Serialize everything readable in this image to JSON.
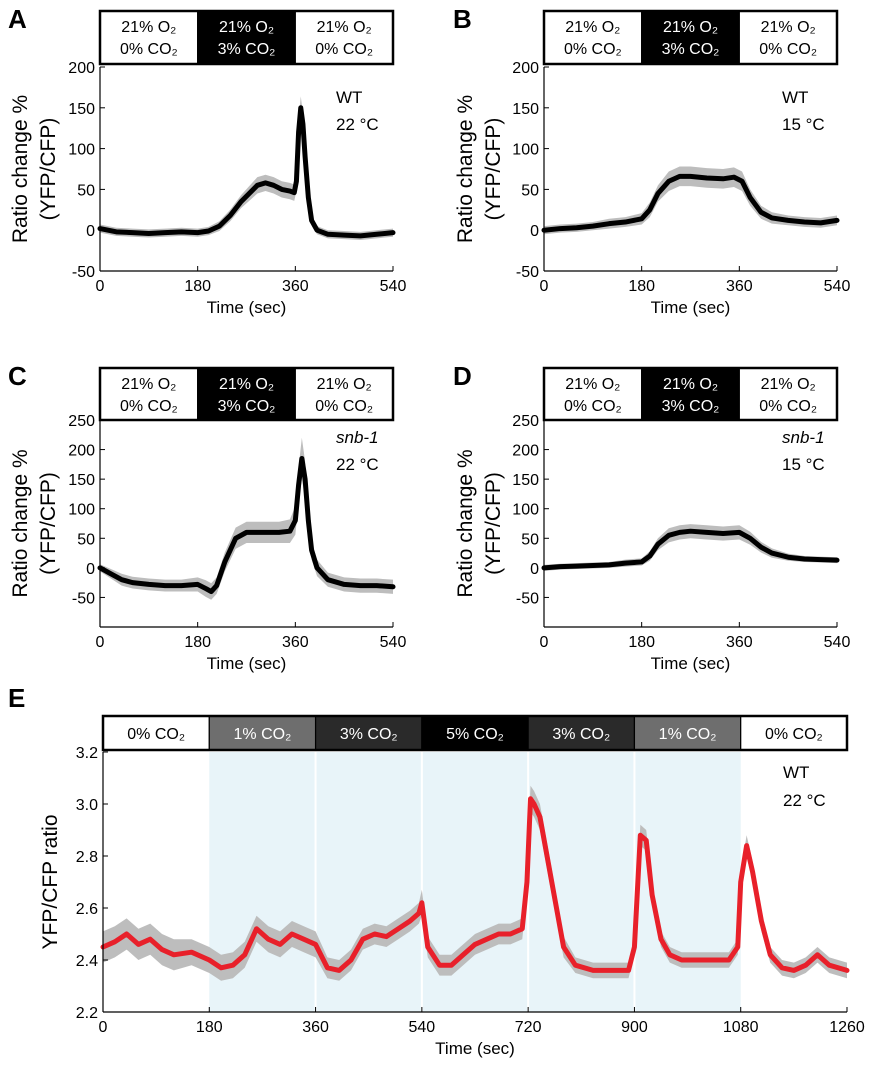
{
  "chart_data": [
    {
      "panel": "A",
      "type": "line",
      "xlabel": "Time (sec)",
      "ylabel_lines": [
        "Ratio change %",
        "(YFP/CFP)"
      ],
      "xlim": [
        0,
        540
      ],
      "ylim": [
        -50,
        200
      ],
      "xticks": [
        0,
        180,
        360,
        540
      ],
      "yticks": [
        -50,
        0,
        50,
        100,
        150,
        200
      ],
      "annotation_lines": [
        "WT",
        "22 °C"
      ],
      "annotation_italic": false,
      "stimulus": [
        {
          "line1": "21% O₂",
          "line2": "0% CO₂",
          "start": 0,
          "end": 180,
          "fill": "#ffffff",
          "text_color": "#000000"
        },
        {
          "line1": "21% O₂",
          "line2": "3% CO₂",
          "start": 180,
          "end": 360,
          "fill": "#000000",
          "text_color": "#ffffff"
        },
        {
          "line1": "21% O₂",
          "line2": "0% CO₂",
          "start": 360,
          "end": 540,
          "fill": "#ffffff",
          "text_color": "#000000"
        }
      ],
      "series": [
        {
          "color": "#000000",
          "band_color": "#bdbdbd",
          "x": [
            0,
            30,
            60,
            90,
            120,
            150,
            180,
            200,
            220,
            240,
            260,
            275,
            290,
            305,
            320,
            335,
            350,
            358,
            362,
            366,
            370,
            374,
            378,
            384,
            390,
            400,
            420,
            450,
            480,
            510,
            540
          ],
          "y": [
            2,
            -2,
            -3,
            -4,
            -3,
            -2,
            -3,
            -1,
            5,
            18,
            35,
            45,
            55,
            58,
            55,
            50,
            48,
            46,
            60,
            120,
            150,
            130,
            90,
            40,
            12,
            0,
            -5,
            -6,
            -7,
            -5,
            -3
          ],
          "err": [
            5,
            5,
            5,
            5,
            5,
            5,
            5,
            5,
            6,
            7,
            8,
            9,
            10,
            10,
            10,
            10,
            10,
            10,
            12,
            14,
            14,
            14,
            12,
            8,
            6,
            5,
            5,
            5,
            5,
            5,
            5
          ]
        }
      ]
    },
    {
      "panel": "B",
      "type": "line",
      "xlabel": "Time (sec)",
      "ylabel_lines": [
        "Ratio change %",
        "(YFP/CFP)"
      ],
      "xlim": [
        0,
        540
      ],
      "ylim": [
        -50,
        200
      ],
      "xticks": [
        0,
        180,
        360,
        540
      ],
      "yticks": [
        -50,
        0,
        50,
        100,
        150,
        200
      ],
      "annotation_lines": [
        "WT",
        "15 °C"
      ],
      "annotation_italic": false,
      "stimulus": [
        {
          "line1": "21% O₂",
          "line2": "0% CO₂",
          "start": 0,
          "end": 180,
          "fill": "#ffffff",
          "text_color": "#000000"
        },
        {
          "line1": "21% O₂",
          "line2": "3% CO₂",
          "start": 180,
          "end": 360,
          "fill": "#000000",
          "text_color": "#ffffff"
        },
        {
          "line1": "21% O₂",
          "line2": "0% CO₂",
          "start": 360,
          "end": 540,
          "fill": "#ffffff",
          "text_color": "#000000"
        }
      ],
      "series": [
        {
          "color": "#000000",
          "band_color": "#bdbdbd",
          "x": [
            0,
            30,
            60,
            90,
            120,
            150,
            180,
            195,
            210,
            230,
            250,
            270,
            300,
            330,
            350,
            365,
            380,
            400,
            420,
            450,
            480,
            510,
            540
          ],
          "y": [
            0,
            2,
            3,
            5,
            8,
            10,
            14,
            25,
            45,
            60,
            66,
            66,
            64,
            63,
            65,
            60,
            40,
            22,
            15,
            12,
            10,
            9,
            12
          ],
          "err": [
            5,
            5,
            5,
            5,
            6,
            6,
            7,
            9,
            10,
            12,
            12,
            12,
            12,
            12,
            12,
            12,
            10,
            8,
            7,
            6,
            6,
            6,
            6
          ]
        }
      ]
    },
    {
      "panel": "C",
      "type": "line",
      "xlabel": "Time (sec)",
      "ylabel_lines": [
        "Ratio change %",
        "(YFP/CFP)"
      ],
      "xlim": [
        0,
        540
      ],
      "ylim": [
        -100,
        250
      ],
      "xticks": [
        0,
        180,
        360,
        540
      ],
      "yticks": [
        -50,
        0,
        50,
        100,
        150,
        200,
        250
      ],
      "annotation_lines": [
        "snb-1",
        "22 °C"
      ],
      "annotation_italic": true,
      "stimulus": [
        {
          "line1": "21% O₂",
          "line2": "0% CO₂",
          "start": 0,
          "end": 180,
          "fill": "#ffffff",
          "text_color": "#000000"
        },
        {
          "line1": "21% O₂",
          "line2": "3% CO₂",
          "start": 180,
          "end": 360,
          "fill": "#000000",
          "text_color": "#ffffff"
        },
        {
          "line1": "21% O₂",
          "line2": "0% CO₂",
          "start": 360,
          "end": 540,
          "fill": "#ffffff",
          "text_color": "#000000"
        }
      ],
      "series": [
        {
          "color": "#000000",
          "band_color": "#bdbdbd",
          "x": [
            0,
            20,
            40,
            60,
            90,
            120,
            150,
            180,
            195,
            205,
            215,
            230,
            250,
            270,
            300,
            330,
            350,
            360,
            366,
            372,
            378,
            384,
            390,
            400,
            420,
            450,
            480,
            510,
            540
          ],
          "y": [
            0,
            -10,
            -20,
            -25,
            -28,
            -30,
            -30,
            -28,
            -35,
            -40,
            -30,
            10,
            50,
            60,
            60,
            60,
            62,
            80,
            140,
            185,
            150,
            80,
            30,
            0,
            -20,
            -28,
            -30,
            -30,
            -32
          ],
          "err": [
            6,
            8,
            10,
            10,
            10,
            10,
            10,
            12,
            14,
            14,
            14,
            16,
            18,
            18,
            18,
            18,
            20,
            24,
            30,
            35,
            30,
            22,
            16,
            14,
            12,
            12,
            12,
            12,
            12
          ]
        }
      ]
    },
    {
      "panel": "D",
      "type": "line",
      "xlabel": "Time (sec)",
      "ylabel_lines": [
        "Ratio change %",
        "(YFP/CFP)"
      ],
      "xlim": [
        0,
        540
      ],
      "ylim": [
        -100,
        250
      ],
      "xticks": [
        0,
        180,
        360,
        540
      ],
      "yticks": [
        -50,
        0,
        50,
        100,
        150,
        200,
        250
      ],
      "annotation_lines": [
        "snb-1",
        "15 °C"
      ],
      "annotation_italic": true,
      "stimulus": [
        {
          "line1": "21% O₂",
          "line2": "0% CO₂",
          "start": 0,
          "end": 180,
          "fill": "#ffffff",
          "text_color": "#000000"
        },
        {
          "line1": "21% O₂",
          "line2": "3% CO₂",
          "start": 180,
          "end": 360,
          "fill": "#000000",
          "text_color": "#ffffff"
        },
        {
          "line1": "21% O₂",
          "line2": "0% CO₂",
          "start": 360,
          "end": 540,
          "fill": "#ffffff",
          "text_color": "#000000"
        }
      ],
      "series": [
        {
          "color": "#000000",
          "band_color": "#bdbdbd",
          "x": [
            0,
            30,
            60,
            90,
            120,
            150,
            180,
            195,
            210,
            230,
            250,
            270,
            300,
            330,
            360,
            380,
            400,
            420,
            450,
            480,
            510,
            540
          ],
          "y": [
            0,
            2,
            3,
            4,
            5,
            8,
            10,
            20,
            40,
            55,
            60,
            62,
            60,
            58,
            60,
            50,
            35,
            25,
            18,
            15,
            14,
            13
          ],
          "err": [
            5,
            5,
            5,
            5,
            5,
            6,
            6,
            8,
            10,
            12,
            12,
            12,
            12,
            12,
            12,
            11,
            9,
            8,
            6,
            5,
            5,
            5
          ]
        }
      ]
    },
    {
      "panel": "E",
      "type": "line",
      "xlabel": "Time (sec)",
      "ylabel_lines": [
        "YFP/CFP ratio"
      ],
      "xlim": [
        0,
        1260
      ],
      "ylim": [
        2.2,
        3.2
      ],
      "xticks": [
        0,
        180,
        360,
        540,
        720,
        900,
        1080,
        1260
      ],
      "yticks": [
        2.2,
        2.4,
        2.6,
        2.8,
        3.0,
        3.2
      ],
      "ytick_labels": [
        "2.2",
        "2.4",
        "2.6",
        "2.8",
        "3.0",
        "3.2"
      ],
      "annotation_lines": [
        "WT",
        "22 °C"
      ],
      "annotation_italic": false,
      "shaded_region": {
        "start": 180,
        "end": 1080,
        "color": "#e8f4f9"
      },
      "stimulus": [
        {
          "line1": "0% CO₂",
          "start": 0,
          "end": 180,
          "fill": "#ffffff",
          "text_color": "#000000"
        },
        {
          "line1": "1% CO₂",
          "start": 180,
          "end": 360,
          "fill": "#6e6e6e",
          "text_color": "#ffffff"
        },
        {
          "line1": "3% CO₂",
          "start": 360,
          "end": 540,
          "fill": "#2a2a2a",
          "text_color": "#ffffff"
        },
        {
          "line1": "5% CO₂",
          "start": 540,
          "end": 720,
          "fill": "#000000",
          "text_color": "#ffffff"
        },
        {
          "line1": "3% CO₂",
          "start": 720,
          "end": 900,
          "fill": "#2a2a2a",
          "text_color": "#ffffff"
        },
        {
          "line1": "1% CO₂",
          "start": 900,
          "end": 1080,
          "fill": "#6e6e6e",
          "text_color": "#ffffff"
        },
        {
          "line1": "0% CO₂",
          "start": 1080,
          "end": 1260,
          "fill": "#ffffff",
          "text_color": "#000000"
        }
      ],
      "series": [
        {
          "color": "#e8202a",
          "band_color": "#bdbdbd",
          "x": [
            0,
            20,
            40,
            60,
            80,
            100,
            120,
            150,
            180,
            200,
            220,
            240,
            260,
            280,
            300,
            320,
            340,
            360,
            380,
            400,
            420,
            440,
            460,
            480,
            500,
            520,
            535,
            540,
            550,
            570,
            590,
            610,
            630,
            650,
            670,
            690,
            710,
            718,
            724,
            730,
            740,
            760,
            780,
            800,
            830,
            860,
            890,
            900,
            910,
            920,
            930,
            945,
            960,
            980,
            1000,
            1030,
            1060,
            1075,
            1080,
            1090,
            1100,
            1115,
            1130,
            1150,
            1170,
            1190,
            1210,
            1230,
            1260
          ],
          "y": [
            2.45,
            2.47,
            2.5,
            2.46,
            2.48,
            2.44,
            2.42,
            2.43,
            2.4,
            2.37,
            2.38,
            2.42,
            2.52,
            2.48,
            2.46,
            2.5,
            2.48,
            2.46,
            2.37,
            2.36,
            2.4,
            2.48,
            2.5,
            2.49,
            2.52,
            2.55,
            2.58,
            2.62,
            2.45,
            2.38,
            2.38,
            2.42,
            2.46,
            2.48,
            2.5,
            2.5,
            2.52,
            2.7,
            3.02,
            3.0,
            2.95,
            2.7,
            2.45,
            2.38,
            2.36,
            2.36,
            2.36,
            2.45,
            2.88,
            2.86,
            2.65,
            2.48,
            2.42,
            2.4,
            2.4,
            2.4,
            2.4,
            2.45,
            2.7,
            2.84,
            2.74,
            2.55,
            2.42,
            2.37,
            2.36,
            2.38,
            2.42,
            2.38,
            2.36
          ],
          "err": [
            0.06,
            0.06,
            0.06,
            0.06,
            0.06,
            0.06,
            0.06,
            0.05,
            0.05,
            0.05,
            0.05,
            0.05,
            0.05,
            0.05,
            0.05,
            0.05,
            0.05,
            0.05,
            0.04,
            0.04,
            0.04,
            0.04,
            0.04,
            0.04,
            0.04,
            0.04,
            0.04,
            0.05,
            0.04,
            0.04,
            0.04,
            0.04,
            0.04,
            0.04,
            0.04,
            0.04,
            0.04,
            0.05,
            0.05,
            0.05,
            0.05,
            0.05,
            0.04,
            0.03,
            0.03,
            0.03,
            0.03,
            0.03,
            0.04,
            0.04,
            0.04,
            0.03,
            0.03,
            0.03,
            0.03,
            0.03,
            0.03,
            0.03,
            0.04,
            0.04,
            0.04,
            0.04,
            0.03,
            0.03,
            0.03,
            0.03,
            0.03,
            0.03,
            0.03
          ]
        }
      ]
    }
  ]
}
